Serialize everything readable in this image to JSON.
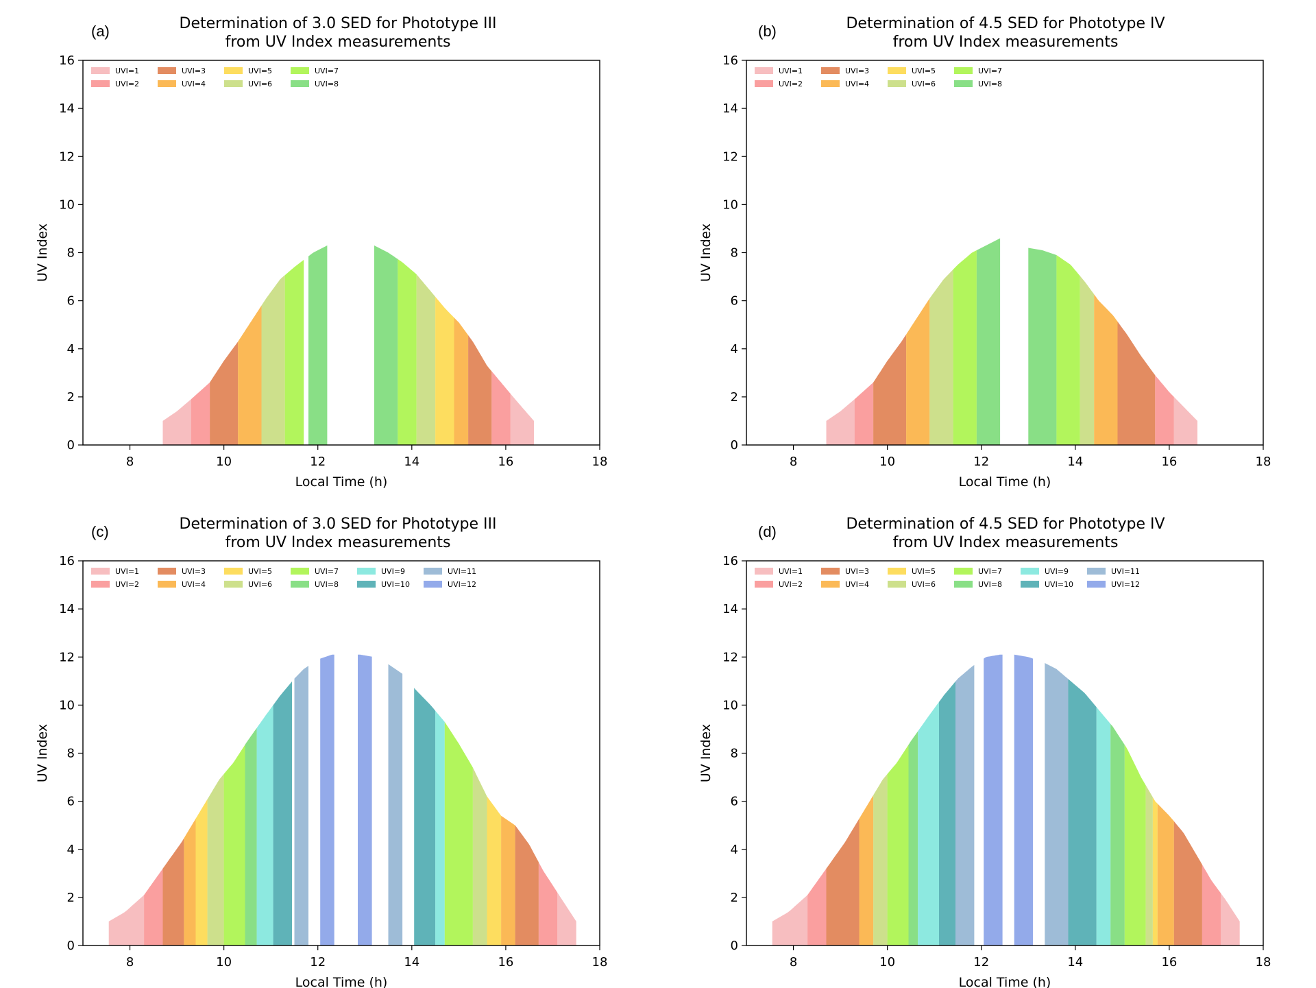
{
  "palette": {
    "UVI=1": "#f4a8ab",
    "UVI=2": "#f87f7f",
    "UVI=3": "#d9662c",
    "UVI=4": "#f9a21e",
    "UVI=5": "#fcd12a",
    "UVI=6": "#bcd665",
    "UVI=7": "#98f226",
    "UVI=8": "#62d45e",
    "UVI=9": "#67e1d6",
    "UVI=10": "#2a9aa0",
    "UVI=11": "#7ea5c9",
    "UVI=12": "#6f8ee3"
  },
  "chart_data": [
    {
      "id": "a",
      "panel_label": "(a)",
      "type": "area",
      "title": "Determination of 3.0 SED for Phototype III",
      "subtitle": "from UV Index measurements",
      "xlabel": "Local Time (h)",
      "ylabel": "UV Index",
      "xlim": [
        7,
        18
      ],
      "ylim": [
        0,
        16
      ],
      "xticks": [
        8,
        10,
        12,
        14,
        16,
        18
      ],
      "yticks": [
        0,
        2,
        4,
        6,
        8,
        10,
        12,
        14,
        16
      ],
      "grid": false,
      "legend_position": "top-left",
      "legend_rows": 2,
      "legend": [
        "UVI=1",
        "UVI=2",
        "UVI=3",
        "UVI=4",
        "UVI=5",
        "UVI=6",
        "UVI=7",
        "UVI=8"
      ],
      "profile": [
        [
          8.7,
          1.0
        ],
        [
          9.0,
          1.4
        ],
        [
          9.3,
          1.9
        ],
        [
          9.7,
          2.6
        ],
        [
          10.0,
          3.5
        ],
        [
          10.3,
          4.3
        ],
        [
          10.6,
          5.2
        ],
        [
          10.9,
          6.1
        ],
        [
          11.2,
          6.9
        ],
        [
          11.5,
          7.4
        ],
        [
          11.7,
          7.7
        ],
        [
          11.9,
          8.0
        ],
        [
          12.2,
          8.3
        ],
        [
          13.2,
          8.3
        ],
        [
          13.5,
          8.0
        ],
        [
          13.8,
          7.6
        ],
        [
          14.1,
          7.1
        ],
        [
          14.4,
          6.4
        ],
        [
          14.7,
          5.7
        ],
        [
          15.0,
          5.1
        ],
        [
          15.3,
          4.3
        ],
        [
          15.6,
          3.3
        ],
        [
          15.9,
          2.6
        ],
        [
          16.2,
          1.9
        ],
        [
          16.6,
          1.0
        ]
      ],
      "bands": [
        {
          "uvi": 1,
          "x0": 8.7,
          "x1": 9.3
        },
        {
          "uvi": 2,
          "x0": 9.3,
          "x1": 9.7
        },
        {
          "uvi": 3,
          "x0": 9.7,
          "x1": 10.3
        },
        {
          "uvi": 4,
          "x0": 10.3,
          "x1": 10.8
        },
        {
          "uvi": 6,
          "x0": 10.8,
          "x1": 11.3
        },
        {
          "uvi": 7,
          "x0": 11.3,
          "x1": 11.7
        },
        {
          "uvi": 8,
          "x0": 11.8,
          "x1": 12.2
        },
        {
          "uvi": 8,
          "x0": 13.2,
          "x1": 13.7
        },
        {
          "uvi": 7,
          "x0": 13.7,
          "x1": 14.1
        },
        {
          "uvi": 6,
          "x0": 14.1,
          "x1": 14.5
        },
        {
          "uvi": 5,
          "x0": 14.5,
          "x1": 14.9
        },
        {
          "uvi": 4,
          "x0": 14.9,
          "x1": 15.2
        },
        {
          "uvi": 3,
          "x0": 15.2,
          "x1": 15.7
        },
        {
          "uvi": 2,
          "x0": 15.7,
          "x1": 16.1
        },
        {
          "uvi": 1,
          "x0": 16.1,
          "x1": 16.6
        }
      ]
    },
    {
      "id": "b",
      "panel_label": "(b)",
      "type": "area",
      "title": "Determination of 4.5 SED for Phototype IV",
      "subtitle": "from UV Index measurements",
      "xlabel": "Local Time (h)",
      "ylabel": "UV Index",
      "xlim": [
        7,
        18
      ],
      "ylim": [
        0,
        16
      ],
      "xticks": [
        8,
        10,
        12,
        14,
        16,
        18
      ],
      "yticks": [
        0,
        2,
        4,
        6,
        8,
        10,
        12,
        14,
        16
      ],
      "grid": false,
      "legend_position": "top-left",
      "legend_rows": 2,
      "legend": [
        "UVI=1",
        "UVI=2",
        "UVI=3",
        "UVI=4",
        "UVI=5",
        "UVI=6",
        "UVI=7",
        "UVI=8"
      ],
      "profile": [
        [
          8.7,
          1.0
        ],
        [
          9.0,
          1.4
        ],
        [
          9.3,
          1.9
        ],
        [
          9.7,
          2.6
        ],
        [
          10.0,
          3.5
        ],
        [
          10.3,
          4.3
        ],
        [
          10.6,
          5.2
        ],
        [
          10.9,
          6.1
        ],
        [
          11.2,
          6.9
        ],
        [
          11.5,
          7.5
        ],
        [
          11.8,
          8.0
        ],
        [
          12.1,
          8.3
        ],
        [
          12.4,
          8.6
        ],
        [
          13.0,
          8.2
        ],
        [
          13.3,
          8.1
        ],
        [
          13.6,
          7.9
        ],
        [
          13.9,
          7.5
        ],
        [
          14.2,
          6.8
        ],
        [
          14.5,
          6.0
        ],
        [
          14.8,
          5.4
        ],
        [
          15.1,
          4.6
        ],
        [
          15.4,
          3.7
        ],
        [
          15.7,
          2.9
        ],
        [
          16.0,
          2.2
        ],
        [
          16.3,
          1.6
        ],
        [
          16.6,
          1.0
        ]
      ],
      "bands": [
        {
          "uvi": 1,
          "x0": 8.7,
          "x1": 9.3
        },
        {
          "uvi": 2,
          "x0": 9.3,
          "x1": 9.7
        },
        {
          "uvi": 3,
          "x0": 9.7,
          "x1": 10.4
        },
        {
          "uvi": 4,
          "x0": 10.4,
          "x1": 10.9
        },
        {
          "uvi": 6,
          "x0": 10.9,
          "x1": 11.4
        },
        {
          "uvi": 7,
          "x0": 11.4,
          "x1": 11.9
        },
        {
          "uvi": 8,
          "x0": 11.9,
          "x1": 12.4
        },
        {
          "uvi": 8,
          "x0": 13.0,
          "x1": 13.6
        },
        {
          "uvi": 7,
          "x0": 13.6,
          "x1": 14.1
        },
        {
          "uvi": 6,
          "x0": 14.1,
          "x1": 14.4
        },
        {
          "uvi": 4,
          "x0": 14.4,
          "x1": 14.9
        },
        {
          "uvi": 3,
          "x0": 14.9,
          "x1": 15.7
        },
        {
          "uvi": 2,
          "x0": 15.7,
          "x1": 16.1
        },
        {
          "uvi": 1,
          "x0": 16.1,
          "x1": 16.6
        }
      ]
    },
    {
      "id": "c",
      "panel_label": "(c)",
      "type": "area",
      "title": "Determination of 3.0 SED for Phototype III",
      "subtitle": "from UV Index measurements",
      "xlabel": "Local Time (h)",
      "ylabel": "UV Index",
      "xlim": [
        7,
        18
      ],
      "ylim": [
        0,
        16
      ],
      "xticks": [
        8,
        10,
        12,
        14,
        16,
        18
      ],
      "yticks": [
        0,
        2,
        4,
        6,
        8,
        10,
        12,
        14,
        16
      ],
      "grid": false,
      "legend_position": "top-left",
      "legend_rows": 2,
      "legend": [
        "UVI=1",
        "UVI=2",
        "UVI=3",
        "UVI=4",
        "UVI=5",
        "UVI=6",
        "UVI=7",
        "UVI=8",
        "UVI=9",
        "UVI=10",
        "UVI=11",
        "UVI=12"
      ],
      "profile": [
        [
          7.55,
          1.0
        ],
        [
          7.9,
          1.4
        ],
        [
          8.3,
          2.1
        ],
        [
          8.7,
          3.2
        ],
        [
          9.1,
          4.3
        ],
        [
          9.5,
          5.6
        ],
        [
          9.9,
          6.9
        ],
        [
          10.2,
          7.6
        ],
        [
          10.5,
          8.5
        ],
        [
          10.9,
          9.6
        ],
        [
          11.2,
          10.4
        ],
        [
          11.5,
          11.1
        ],
        [
          11.7,
          11.5
        ],
        [
          12.0,
          11.9
        ],
        [
          12.3,
          12.1
        ],
        [
          12.6,
          12.1
        ],
        [
          12.9,
          12.1
        ],
        [
          13.2,
          12.0
        ],
        [
          13.5,
          11.7
        ],
        [
          13.8,
          11.3
        ],
        [
          14.1,
          10.6
        ],
        [
          14.4,
          10.0
        ],
        [
          14.7,
          9.3
        ],
        [
          15.0,
          8.4
        ],
        [
          15.3,
          7.4
        ],
        [
          15.6,
          6.2
        ],
        [
          15.9,
          5.4
        ],
        [
          16.2,
          5.0
        ],
        [
          16.5,
          4.2
        ],
        [
          16.8,
          3.1
        ],
        [
          17.1,
          2.2
        ],
        [
          17.5,
          1.0
        ]
      ],
      "bands": [
        {
          "uvi": 1,
          "x0": 7.55,
          "x1": 8.3
        },
        {
          "uvi": 2,
          "x0": 8.3,
          "x1": 8.7
        },
        {
          "uvi": 3,
          "x0": 8.7,
          "x1": 9.15
        },
        {
          "uvi": 4,
          "x0": 9.15,
          "x1": 9.4
        },
        {
          "uvi": 5,
          "x0": 9.4,
          "x1": 9.65
        },
        {
          "uvi": 6,
          "x0": 9.65,
          "x1": 10.0
        },
        {
          "uvi": 7,
          "x0": 10.0,
          "x1": 10.45
        },
        {
          "uvi": 8,
          "x0": 10.45,
          "x1": 10.7
        },
        {
          "uvi": 9,
          "x0": 10.7,
          "x1": 11.05
        },
        {
          "uvi": 10,
          "x0": 11.05,
          "x1": 11.45
        },
        {
          "uvi": 11,
          "x0": 11.5,
          "x1": 11.8
        },
        {
          "uvi": 12,
          "x0": 12.05,
          "x1": 12.35
        },
        {
          "uvi": 12,
          "x0": 12.85,
          "x1": 13.15
        },
        {
          "uvi": 11,
          "x0": 13.5,
          "x1": 13.8
        },
        {
          "uvi": 10,
          "x0": 14.05,
          "x1": 14.5
        },
        {
          "uvi": 9,
          "x0": 14.5,
          "x1": 14.7
        },
        {
          "uvi": 7,
          "x0": 14.7,
          "x1": 15.3
        },
        {
          "uvi": 6,
          "x0": 15.3,
          "x1": 15.6
        },
        {
          "uvi": 5,
          "x0": 15.6,
          "x1": 15.9
        },
        {
          "uvi": 4,
          "x0": 15.9,
          "x1": 16.2
        },
        {
          "uvi": 3,
          "x0": 16.2,
          "x1": 16.7
        },
        {
          "uvi": 2,
          "x0": 16.7,
          "x1": 17.1
        },
        {
          "uvi": 1,
          "x0": 17.1,
          "x1": 17.5
        }
      ]
    },
    {
      "id": "d",
      "panel_label": "(d)",
      "type": "area",
      "title": "Determination of 4.5 SED for Phototype IV",
      "subtitle": "from UV Index measurements",
      "xlabel": "Local Time (h)",
      "ylabel": "UV Index",
      "xlim": [
        7,
        18
      ],
      "ylim": [
        0,
        16
      ],
      "xticks": [
        8,
        10,
        12,
        14,
        16,
        18
      ],
      "yticks": [
        0,
        2,
        4,
        6,
        8,
        10,
        12,
        14,
        16
      ],
      "grid": false,
      "legend_position": "top-left",
      "legend_rows": 2,
      "legend": [
        "UVI=1",
        "UVI=2",
        "UVI=3",
        "UVI=4",
        "UVI=5",
        "UVI=6",
        "UVI=7",
        "UVI=8",
        "UVI=9",
        "UVI=10",
        "UVI=11",
        "UVI=12"
      ],
      "profile": [
        [
          7.55,
          1.0
        ],
        [
          7.9,
          1.4
        ],
        [
          8.3,
          2.1
        ],
        [
          8.7,
          3.2
        ],
        [
          9.1,
          4.3
        ],
        [
          9.5,
          5.6
        ],
        [
          9.9,
          6.9
        ],
        [
          10.2,
          7.6
        ],
        [
          10.5,
          8.5
        ],
        [
          10.9,
          9.6
        ],
        [
          11.2,
          10.4
        ],
        [
          11.5,
          11.1
        ],
        [
          11.8,
          11.6
        ],
        [
          12.1,
          12.0
        ],
        [
          12.4,
          12.1
        ],
        [
          12.7,
          12.1
        ],
        [
          13.0,
          12.0
        ],
        [
          13.3,
          11.8
        ],
        [
          13.6,
          11.5
        ],
        [
          13.9,
          11.0
        ],
        [
          14.2,
          10.5
        ],
        [
          14.5,
          9.8
        ],
        [
          14.8,
          9.1
        ],
        [
          15.1,
          8.2
        ],
        [
          15.4,
          7.0
        ],
        [
          15.7,
          6.0
        ],
        [
          16.0,
          5.4
        ],
        [
          16.3,
          4.7
        ],
        [
          16.6,
          3.7
        ],
        [
          16.9,
          2.7
        ],
        [
          17.2,
          1.9
        ],
        [
          17.5,
          1.0
        ]
      ],
      "bands": [
        {
          "uvi": 1,
          "x0": 7.55,
          "x1": 8.3
        },
        {
          "uvi": 2,
          "x0": 8.3,
          "x1": 8.7
        },
        {
          "uvi": 3,
          "x0": 8.7,
          "x1": 9.4
        },
        {
          "uvi": 4,
          "x0": 9.4,
          "x1": 9.7
        },
        {
          "uvi": 6,
          "x0": 9.7,
          "x1": 10.0
        },
        {
          "uvi": 7,
          "x0": 10.0,
          "x1": 10.45
        },
        {
          "uvi": 8,
          "x0": 10.45,
          "x1": 10.65
        },
        {
          "uvi": 9,
          "x0": 10.65,
          "x1": 11.1
        },
        {
          "uvi": 10,
          "x0": 11.1,
          "x1": 11.45
        },
        {
          "uvi": 11,
          "x0": 11.45,
          "x1": 11.85
        },
        {
          "uvi": 12,
          "x0": 12.05,
          "x1": 12.45
        },
        {
          "uvi": 12,
          "x0": 12.7,
          "x1": 13.1
        },
        {
          "uvi": 11,
          "x0": 13.35,
          "x1": 13.85
        },
        {
          "uvi": 10,
          "x0": 13.85,
          "x1": 14.45
        },
        {
          "uvi": 9,
          "x0": 14.45,
          "x1": 14.75
        },
        {
          "uvi": 8,
          "x0": 14.75,
          "x1": 15.05
        },
        {
          "uvi": 7,
          "x0": 15.05,
          "x1": 15.5
        },
        {
          "uvi": 6,
          "x0": 15.5,
          "x1": 15.65
        },
        {
          "uvi": 5,
          "x0": 15.65,
          "x1": 15.75
        },
        {
          "uvi": 4,
          "x0": 15.75,
          "x1": 16.1
        },
        {
          "uvi": 3,
          "x0": 16.1,
          "x1": 16.7
        },
        {
          "uvi": 2,
          "x0": 16.7,
          "x1": 17.1
        },
        {
          "uvi": 1,
          "x0": 17.1,
          "x1": 17.5
        }
      ]
    }
  ]
}
